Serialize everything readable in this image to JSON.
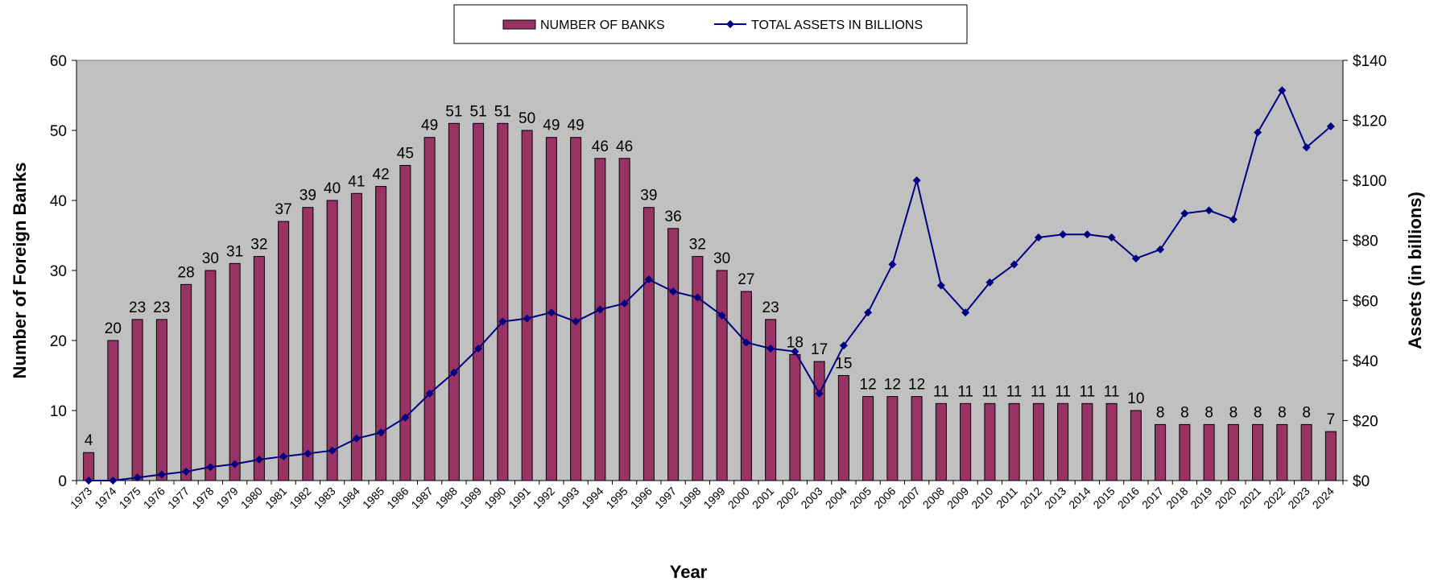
{
  "chart_data": {
    "type": "bar",
    "title": "",
    "xlabel": "Year",
    "ylabel": "Number of Foreign Banks",
    "y2label": "Assets (in billions)",
    "ylim": [
      0,
      60
    ],
    "y2lim": [
      0,
      140
    ],
    "yticks": [
      "0",
      "10",
      "20",
      "30",
      "40",
      "50",
      "60"
    ],
    "y2ticks": [
      "$0",
      "$20",
      "$40",
      "$60",
      "$80",
      "$100",
      "$120",
      "$140"
    ],
    "grid": false,
    "legend_position": "top-center",
    "categories": [
      "1973",
      "1974",
      "1975",
      "1976",
      "1977",
      "1978",
      "1979",
      "1980",
      "1981",
      "1982",
      "1983",
      "1984",
      "1985",
      "1986",
      "1987",
      "1988",
      "1989",
      "1990",
      "1991",
      "1992",
      "1993",
      "1994",
      "1995",
      "1996",
      "1997",
      "1998",
      "1999",
      "2000",
      "2001",
      "2002",
      "2003",
      "2004",
      "2005",
      "2006",
      "2007",
      "2008",
      "2009",
      "2010",
      "2011",
      "2012",
      "2013",
      "2014",
      "2015",
      "2016",
      "2017",
      "2018",
      "2019",
      "2020",
      "2021",
      "2022",
      "2023",
      "2024"
    ],
    "series": [
      {
        "name": "NUMBER OF BANKS",
        "type": "bar",
        "axis": "left",
        "color": "#993366",
        "values": [
          4,
          20,
          23,
          23,
          28,
          30,
          31,
          32,
          37,
          39,
          40,
          41,
          42,
          45,
          49,
          51,
          51,
          51,
          50,
          49,
          49,
          46,
          46,
          39,
          36,
          32,
          30,
          27,
          23,
          18,
          17,
          15,
          12,
          12,
          12,
          11,
          11,
          11,
          11,
          11,
          11,
          11,
          11,
          10,
          8,
          8,
          8,
          8,
          8,
          8,
          8,
          7
        ]
      },
      {
        "name": "TOTAL ASSETS IN BILLIONS",
        "type": "line",
        "axis": "right",
        "color": "#000080",
        "values": [
          0,
          0,
          1,
          2,
          3,
          4.5,
          5.5,
          7,
          8,
          9,
          10,
          14,
          16,
          21,
          29,
          36,
          44,
          53,
          54,
          56,
          53,
          57,
          59,
          67,
          63,
          61,
          55,
          46,
          44,
          43,
          29,
          45,
          56,
          72,
          100,
          65,
          56,
          66,
          72,
          81,
          82,
          82,
          81,
          74,
          77,
          89,
          90,
          87,
          116,
          130,
          111,
          118
        ]
      }
    ],
    "plot_background": "#c0c0c0"
  }
}
